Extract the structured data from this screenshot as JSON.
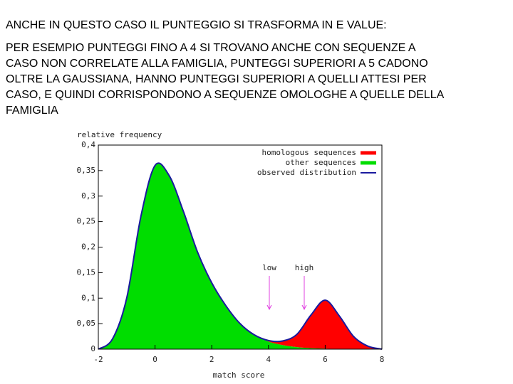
{
  "heading": "ANCHE IN QUESTO CASO IL PUNTEGGIO SI TRASFORMA IN E VALUE:",
  "paragraph_lines": [
    "PER ESEMPIO PUNTEGGI FINO A 4 SI TROVANO ANCHE CON SEQUENZE A",
    "CASO NON CORRELATE ALLA FAMIGLIA, PUNTEGGI SUPERIORI A 5 CADONO",
    "OLTRE LA GAUSSIANA, HANNO PUNTEGGI SUPERIORI A QUELLI ATTESI PER",
    "CASO, E QUINDI CORRISPONDONO A SEQUENZE OMOLOGHE A QUELLE DELLA",
    "FAMIGLIA"
  ],
  "chart_data": {
    "type": "area",
    "y_label": "relative frequency",
    "x_label": "match score",
    "annotations": [
      "low",
      "high"
    ],
    "x": [
      -2,
      -1.5,
      -1,
      -0.5,
      0,
      0.5,
      1,
      1.5,
      2,
      2.5,
      3,
      3.5,
      4,
      4.5,
      5,
      5.5,
      6,
      6.5,
      7,
      7.5,
      8
    ],
    "series": [
      {
        "name": "homologous sequences",
        "type": "area",
        "color": "#ff0000",
        "values": [
          0,
          0,
          0,
          0,
          0,
          0,
          0,
          0,
          0,
          0,
          0,
          0,
          0.002,
          0.008,
          0.025,
          0.065,
          0.095,
          0.065,
          0.025,
          0.006,
          0
        ]
      },
      {
        "name": "other sequences",
        "type": "area",
        "color": "#00dd00",
        "values": [
          0,
          0.02,
          0.1,
          0.26,
          0.36,
          0.34,
          0.27,
          0.19,
          0.13,
          0.085,
          0.05,
          0.028,
          0.015,
          0.008,
          0.004,
          0.002,
          0.001,
          0,
          0,
          0,
          0
        ]
      },
      {
        "name": "observed distribution",
        "type": "line",
        "color": "#1a1a9e",
        "values": [
          0,
          0.02,
          0.1,
          0.26,
          0.36,
          0.34,
          0.27,
          0.19,
          0.13,
          0.085,
          0.05,
          0.028,
          0.017,
          0.016,
          0.029,
          0.067,
          0.096,
          0.065,
          0.025,
          0.006,
          0
        ]
      }
    ],
    "xlim": [
      -2,
      8
    ],
    "xticks": [
      -2,
      0,
      2,
      4,
      6,
      8
    ],
    "ylim": [
      0,
      0.4
    ],
    "yticks": [
      0,
      {
        "value": 0.05,
        "label": "0,05"
      },
      {
        "value": 0.1,
        "label": "0,1"
      },
      {
        "value": 0.15,
        "label": "0,15"
      },
      {
        "value": 0.2,
        "label": "0,2"
      },
      {
        "value": 0.25,
        "label": "0,25"
      },
      {
        "value": 0.3,
        "label": "0,3"
      },
      {
        "value": 0.35,
        "label": "0,35"
      },
      {
        "value": 0.4,
        "label": "0,4"
      }
    ],
    "legend": "top-right"
  }
}
